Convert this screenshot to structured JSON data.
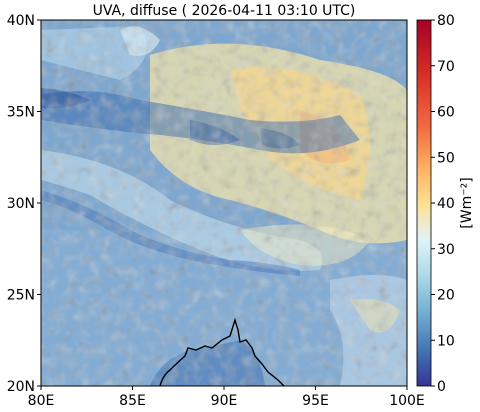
{
  "title": "UVA, diffuse ( 2026-04-11 03:10 UTC)",
  "map": {
    "lon_ticks": [
      "80E",
      "85E",
      "90E",
      "95E",
      "100E"
    ],
    "lat_ticks": [
      "20N",
      "25N",
      "30N",
      "35N",
      "40N"
    ],
    "lon_range": [
      80,
      100
    ],
    "lat_range": [
      20,
      40
    ],
    "background_color": "#7ea7cf"
  },
  "colorbar": {
    "label": "[Wm⁻²]",
    "ticks": [
      "0",
      "10",
      "20",
      "30",
      "40",
      "50",
      "60",
      "70",
      "80"
    ],
    "range": [
      0,
      80
    ],
    "colormap": "RdYlBu_r"
  }
}
